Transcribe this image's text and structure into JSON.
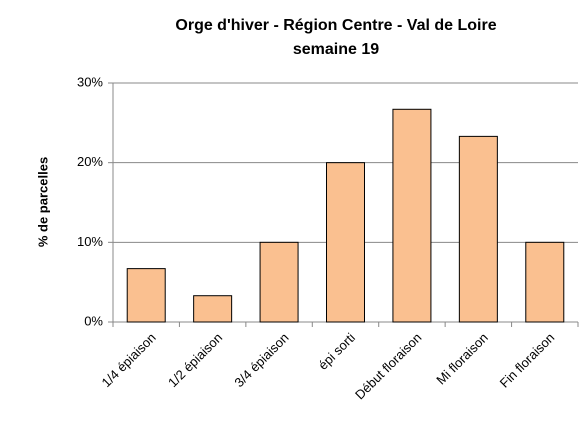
{
  "chart_data": {
    "type": "bar",
    "title": [
      "Orge d'hiver - Région Centre - Val de Loire",
      "semaine 19"
    ],
    "y_label": "% de parcelles",
    "categories": [
      "1/4 épiaison",
      "1/2 épiaison",
      "3/4 épiaison",
      "épi sorti",
      "Début floraison",
      "Mi floraison",
      "Fin floraison"
    ],
    "values": [
      6.7,
      3.3,
      10,
      20,
      26.7,
      23.3,
      10
    ],
    "color": "#fac090",
    "ylim": [
      0,
      30
    ],
    "yticks": [
      {
        "value": 0,
        "label": "0%"
      },
      {
        "value": 10,
        "label": "10%"
      },
      {
        "value": 20,
        "label": "20%"
      },
      {
        "value": 30,
        "label": "30%"
      }
    ],
    "grid": true
  }
}
